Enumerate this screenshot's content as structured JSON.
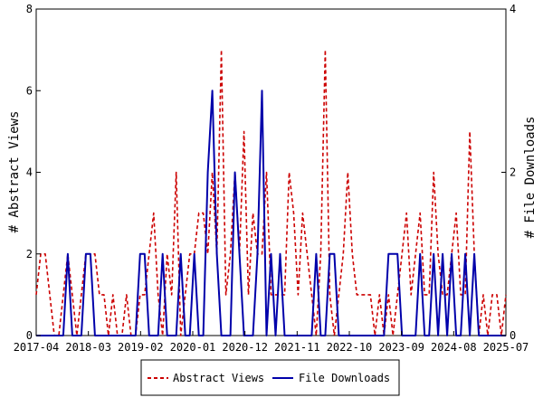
{
  "chart_data": {
    "type": "line",
    "x_tick_labels": [
      "2017-04",
      "2018-03",
      "2019-02",
      "2020-01",
      "2020-12",
      "2021-11",
      "2022-10",
      "2023-09",
      "2024-08",
      "2025-07"
    ],
    "y_left": {
      "label": "# Abstract Views",
      "ticks": [
        "0",
        "2",
        "4",
        "6",
        "8"
      ],
      "range": [
        0,
        8
      ]
    },
    "y_right": {
      "label": "# File Downloads",
      "ticks": [
        "0",
        "2",
        "4"
      ],
      "range": [
        0,
        4
      ]
    },
    "grid": false,
    "legend_position": "bottom-center",
    "series": [
      {
        "name": "Abstract Views",
        "axis": "left",
        "color": "#cc0000",
        "style": "dashed",
        "values": [
          1,
          2,
          2,
          1,
          0,
          0,
          1,
          2,
          1,
          0,
          1,
          2,
          2,
          2,
          1,
          1,
          0,
          1,
          0,
          0,
          1,
          0,
          0,
          1,
          1,
          2,
          3,
          1,
          0,
          2,
          1,
          4,
          0,
          1,
          2,
          2,
          3,
          3,
          2,
          4,
          2,
          7,
          1,
          2,
          4,
          2,
          5,
          1,
          3,
          2,
          2,
          4,
          1,
          1,
          1,
          1,
          4,
          3,
          1,
          3,
          2,
          1,
          0,
          2,
          7,
          1,
          0,
          1,
          2,
          4,
          2,
          1,
          1,
          1,
          1,
          0,
          1,
          0,
          1,
          0,
          1,
          2,
          3,
          1,
          2,
          3,
          1,
          1,
          4,
          2,
          1,
          1,
          2,
          3,
          1,
          1,
          5,
          2,
          0,
          1,
          0,
          1,
          1,
          0,
          1
        ]
      },
      {
        "name": "File Downloads",
        "axis": "right",
        "color": "#0000aa",
        "style": "solid",
        "values": [
          0,
          0,
          0,
          0,
          0,
          0,
          0,
          1,
          0,
          0,
          0,
          1,
          1,
          0,
          0,
          0,
          0,
          0,
          0,
          0,
          0,
          0,
          0,
          1,
          1,
          0,
          0,
          0,
          1,
          0,
          0,
          0,
          1,
          0,
          0,
          1,
          0,
          0,
          2,
          3,
          1,
          0,
          0,
          0,
          2,
          1,
          0,
          0,
          0,
          1,
          3,
          0,
          1,
          0,
          1,
          0,
          0,
          0,
          0,
          0,
          0,
          0,
          1,
          0,
          0,
          1,
          1,
          0,
          0,
          0,
          0,
          0,
          0,
          0,
          0,
          0,
          0,
          0,
          1,
          1,
          1,
          0,
          0,
          0,
          0,
          1,
          0,
          0,
          1,
          0,
          1,
          0,
          1,
          0,
          0,
          1,
          0,
          1,
          0,
          0,
          0,
          0,
          0,
          0,
          0
        ]
      }
    ]
  }
}
